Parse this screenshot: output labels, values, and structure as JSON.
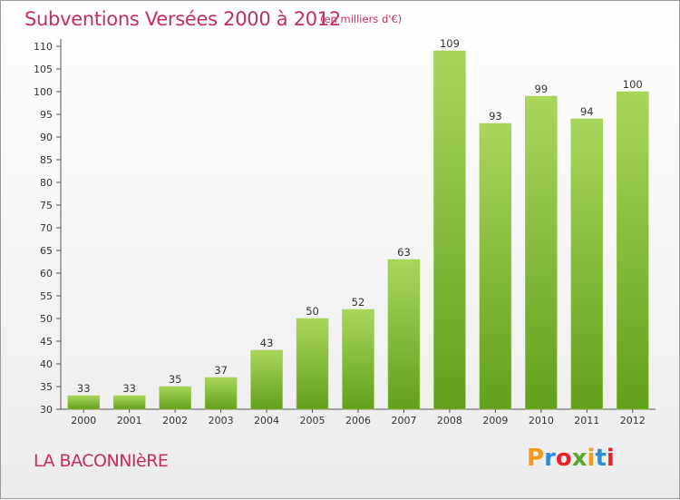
{
  "header": {
    "title": "Subventions Versées 2000 à 2012",
    "unit": "(en milliers d'€)"
  },
  "footer": {
    "location": "LA BACONNIèRE",
    "logo_text": "Proxiti"
  },
  "colors": {
    "title": "#c0305c",
    "bar_light": "#a9d65c",
    "bar_dark": "#63a01b",
    "logo": [
      "#f39a1b",
      "#2b8fd6",
      "#e4262b",
      "#5aa82c",
      "#f39a1b",
      "#2b8fd6",
      "#e4262b"
    ]
  },
  "chart_data": {
    "type": "bar",
    "title": "Subventions Versées 2000 à 2012",
    "xlabel": "",
    "ylabel": "",
    "categories": [
      "2000",
      "2001",
      "2002",
      "2003",
      "2004",
      "2005",
      "2006",
      "2007",
      "2008",
      "2009",
      "2010",
      "2011",
      "2012"
    ],
    "values": [
      33,
      33,
      35,
      37,
      43,
      50,
      52,
      63,
      109,
      93,
      99,
      94,
      100
    ],
    "ylim": [
      30,
      110
    ],
    "yticks": [
      30,
      35,
      40,
      45,
      50,
      55,
      60,
      65,
      70,
      75,
      80,
      85,
      90,
      95,
      100,
      105,
      110
    ],
    "grid": false,
    "legend": "none"
  }
}
